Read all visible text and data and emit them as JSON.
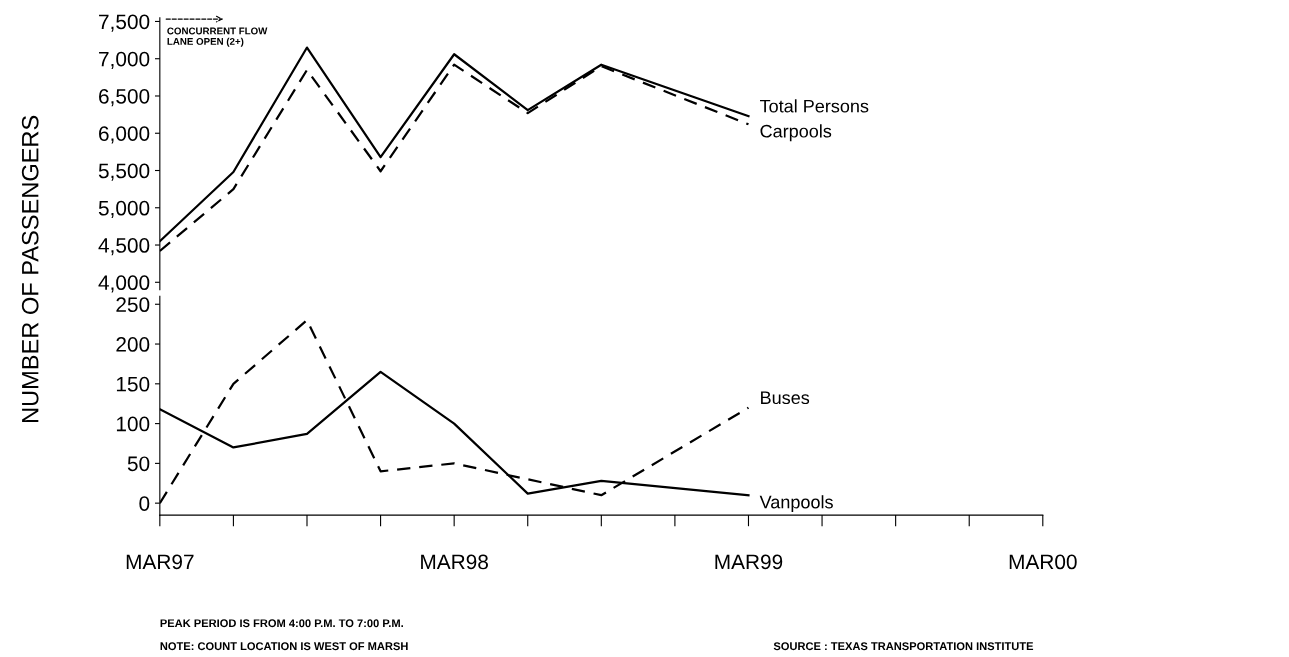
{
  "chart_data": [
    {
      "type": "line",
      "ylabel": "NUMBER OF PASSENGERS",
      "x": [
        "1997-03",
        "1997-06",
        "1997-09",
        "1997-12",
        "1998-03",
        "1998-06",
        "1998-09",
        "1999-03"
      ],
      "series": [
        {
          "name": "Total Persons",
          "color": "#000000",
          "line_style": "solid",
          "values": [
            4550,
            5480,
            7150,
            5680,
            7060,
            6310,
            6920,
            6230
          ]
        },
        {
          "name": "Carpools",
          "color": "#000000",
          "line_style": "dashed",
          "values": [
            4420,
            5250,
            6850,
            5490,
            6920,
            6270,
            6900,
            6120
          ]
        }
      ],
      "xlim": [
        "1997-03",
        "2000-03"
      ],
      "ylim": [
        3900,
        7550
      ],
      "yticks": [
        {
          "value": 4000,
          "label": "4,000"
        },
        {
          "value": 4500,
          "label": "4,500"
        },
        {
          "value": 5000,
          "label": "5,000"
        },
        {
          "value": 5500,
          "label": "5,500"
        },
        {
          "value": 6000,
          "label": "6,000"
        },
        {
          "value": 6500,
          "label": "6,500"
        },
        {
          "value": 7000,
          "label": "7,000"
        },
        {
          "value": 7500,
          "label": "7,500"
        }
      ],
      "tick_labels": "y",
      "grid": false,
      "legend": false,
      "annotations": [
        "CONCURRENT FLOW\nLANE OPEN (2+)"
      ]
    },
    {
      "type": "line",
      "x": [
        "1997-03",
        "1997-06",
        "1997-09",
        "1997-12",
        "1998-03",
        "1998-06",
        "1998-09",
        "1999-03"
      ],
      "series": [
        {
          "name": "Buses",
          "color": "#000000",
          "line_style": "dashed",
          "values": [
            0,
            150,
            230,
            40,
            50,
            30,
            10,
            120
          ]
        },
        {
          "name": "Vanpools",
          "color": "#000000",
          "line_style": "solid",
          "values": [
            118,
            70,
            87,
            165,
            100,
            12,
            28,
            10
          ]
        }
      ],
      "xlim": [
        "1997-03",
        "2000-03"
      ],
      "ylim": [
        -15,
        260
      ],
      "xticks": [
        {
          "value": "1997-03",
          "label": "MAR97"
        },
        {
          "value": "1997-06",
          "label": null
        },
        {
          "value": "1997-09",
          "label": null
        },
        {
          "value": "1997-12",
          "label": null
        },
        {
          "value": "1998-03",
          "label": "MAR98"
        },
        {
          "value": "1998-06",
          "label": null
        },
        {
          "value": "1998-09",
          "label": null
        },
        {
          "value": "1998-12",
          "label": null
        },
        {
          "value": "1999-03",
          "label": "MAR99"
        },
        {
          "value": "1999-06",
          "label": null
        },
        {
          "value": "1999-09",
          "label": null
        },
        {
          "value": "1999-12",
          "label": null
        },
        {
          "value": "2000-03",
          "label": "MAR00"
        }
      ],
      "yticks": [
        0,
        50,
        100,
        150,
        200,
        250
      ],
      "grid": false,
      "legend": false,
      "annotations": [
        "PEAK PERIOD IS FROM 4:00 P.M. TO 7:00 P.M.",
        "NOTE: COUNT LOCATION IS WEST OF MARSH",
        "SOURCE : TEXAS TRANSPORTATION INSTITUTE"
      ]
    }
  ]
}
